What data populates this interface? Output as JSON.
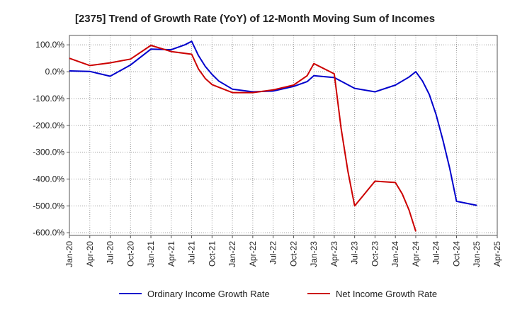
{
  "chart_data": {
    "type": "line",
    "title": "[2375]  Trend of Growth Rate (YoY) of 12-Month Moving Sum of Incomes",
    "xlabel": "",
    "ylabel": "",
    "x_ticks": [
      "Jan-20",
      "Apr-20",
      "Jul-20",
      "Oct-20",
      "Jan-21",
      "Apr-21",
      "Jul-21",
      "Oct-21",
      "Jan-22",
      "Apr-22",
      "Jul-22",
      "Oct-22",
      "Jan-23",
      "Apr-23",
      "Jul-23",
      "Oct-23",
      "Jan-24",
      "Apr-24",
      "Jul-24",
      "Oct-24",
      "Jan-25",
      "Apr-25"
    ],
    "y_ticks": [
      "100.0%",
      "0.0%",
      "-100.0%",
      "-200.0%",
      "-300.0%",
      "-400.0%",
      "-500.0%",
      "-600.0%"
    ],
    "ylim": [
      -610,
      135
    ],
    "grid": true,
    "legend_position": "bottom",
    "series": [
      {
        "name": "Ordinary Income Growth Rate",
        "color": "#0000cc",
        "points": [
          [
            "Jan-20",
            3
          ],
          [
            "Apr-20",
            1
          ],
          [
            "Jul-20",
            -17
          ],
          [
            "Oct-20",
            25
          ],
          [
            "Jan-21",
            84
          ],
          [
            "Apr-21",
            82
          ],
          [
            "Jun-21",
            100
          ],
          [
            "Jul-21",
            113
          ],
          [
            "Aug-21",
            60
          ],
          [
            "Sep-21",
            20
          ],
          [
            "Oct-21",
            -10
          ],
          [
            "Nov-21",
            -35
          ],
          [
            "Jan-22",
            -65
          ],
          [
            "Apr-22",
            -75
          ],
          [
            "Jul-22",
            -72
          ],
          [
            "Oct-22",
            -55
          ],
          [
            "Dec-22",
            -37
          ],
          [
            "Jan-23",
            -15
          ],
          [
            "Apr-23",
            -22
          ],
          [
            "Jul-23",
            -62
          ],
          [
            "Oct-23",
            -75
          ],
          [
            "Jan-24",
            -50
          ],
          [
            "Mar-24",
            -20
          ],
          [
            "Apr-24",
            0
          ],
          [
            "May-24",
            -35
          ],
          [
            "Jun-24",
            -85
          ],
          [
            "Jul-24",
            -160
          ],
          [
            "Aug-24",
            -255
          ],
          [
            "Sep-24",
            -360
          ],
          [
            "Oct-24",
            -483
          ],
          [
            "Jan-25",
            -498
          ]
        ]
      },
      {
        "name": "Net Income Growth Rate",
        "color": "#cc0000",
        "points": [
          [
            "Jan-20",
            50
          ],
          [
            "Apr-20",
            23
          ],
          [
            "Jul-20",
            33
          ],
          [
            "Oct-20",
            47
          ],
          [
            "Jan-21",
            98
          ],
          [
            "Apr-21",
            75
          ],
          [
            "Jul-21",
            65
          ],
          [
            "Aug-21",
            10
          ],
          [
            "Sep-21",
            -25
          ],
          [
            "Oct-21",
            -48
          ],
          [
            "Jan-22",
            -78
          ],
          [
            "Apr-22",
            -78
          ],
          [
            "Jul-22",
            -68
          ],
          [
            "Oct-22",
            -50
          ],
          [
            "Dec-22",
            -15
          ],
          [
            "Jan-23",
            30
          ],
          [
            "Apr-23",
            -8
          ],
          [
            "May-23",
            -210
          ],
          [
            "Jun-23",
            -370
          ],
          [
            "Jul-23",
            -500
          ],
          [
            "Oct-23",
            -408
          ],
          [
            "Jan-24",
            -413
          ],
          [
            "Feb-24",
            -455
          ],
          [
            "Mar-24",
            -515
          ],
          [
            "Apr-24",
            -595
          ]
        ]
      }
    ]
  }
}
